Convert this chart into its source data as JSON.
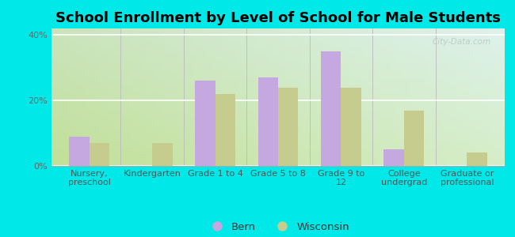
{
  "title": "School Enrollment by Level of School for Male Students",
  "categories": [
    "Nursery,\npreschool",
    "Kindergarten",
    "Grade 1 to 4",
    "Grade 5 to 8",
    "Grade 9 to\n12",
    "College\nundergrad",
    "Graduate or\nprofessional"
  ],
  "bern_values": [
    9,
    0,
    26,
    27,
    35,
    5,
    0
  ],
  "wisconsin_values": [
    7,
    7,
    22,
    24,
    24,
    17,
    4
  ],
  "bern_color": "#c4a8df",
  "wisconsin_color": "#c5cc8e",
  "background_color": "#00e8e8",
  "plot_bg_bottom_left": "#d8edb0",
  "plot_bg_top_right": "#e8f8f5",
  "ylim": [
    0,
    42
  ],
  "yticks": [
    0,
    20,
    40
  ],
  "ytick_labels": [
    "0%",
    "20%",
    "40%"
  ],
  "bar_width": 0.32,
  "legend_labels": [
    "Bern",
    "Wisconsin"
  ],
  "watermark": "City-Data.com",
  "title_fontsize": 13,
  "tick_fontsize": 8,
  "legend_fontsize": 9.5
}
